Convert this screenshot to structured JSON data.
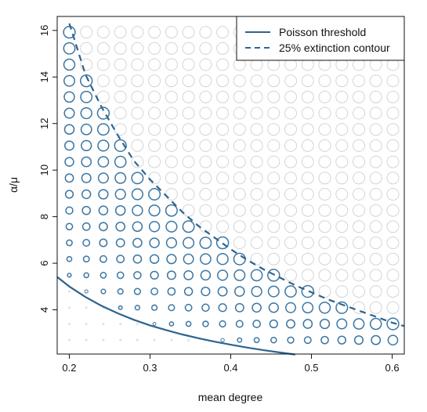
{
  "chart_data": {
    "type": "scatter",
    "xlabel": "mean degree",
    "ylabel": "α/μ",
    "xlim": [
      0.185,
      0.615
    ],
    "ylim": [
      2.1,
      16.6
    ],
    "x_ticks": [
      0.2,
      0.3,
      0.4,
      0.5,
      0.6
    ],
    "y_ticks": [
      4,
      6,
      8,
      10,
      12,
      14,
      16
    ],
    "grid": false,
    "legend": {
      "position": "top-right",
      "entries": [
        {
          "label": "Poisson threshold",
          "style": "solid"
        },
        {
          "label": "25% extinction contour",
          "style": "dashed"
        }
      ]
    },
    "grid_points": {
      "x_start": 0.2,
      "x_step": 0.0211,
      "x_count": 20,
      "y_start": 2.7,
      "y_step": 0.696,
      "y_count": 20
    },
    "series": [
      {
        "name": "Poisson threshold",
        "style": "solid",
        "x": [
          0.185,
          0.2,
          0.22,
          0.24,
          0.26,
          0.28,
          0.3,
          0.32,
          0.34,
          0.36,
          0.38,
          0.4,
          0.42,
          0.44,
          0.46,
          0.48
        ],
        "y": [
          5.41,
          5.0,
          4.55,
          4.17,
          3.85,
          3.57,
          3.33,
          3.13,
          2.94,
          2.78,
          2.63,
          2.5,
          2.38,
          2.27,
          2.17,
          2.08
        ]
      },
      {
        "name": "25% extinction contour",
        "style": "dashed",
        "x": [
          0.2,
          0.22,
          0.24,
          0.26,
          0.28,
          0.3,
          0.32,
          0.34,
          0.36,
          0.38,
          0.4,
          0.42,
          0.44,
          0.46,
          0.48,
          0.5,
          0.52,
          0.54,
          0.56,
          0.58,
          0.6,
          0.615
        ],
        "y": [
          16.3,
          14.1,
          12.7,
          11.5,
          10.4,
          9.6,
          8.9,
          8.2,
          7.6,
          7.1,
          6.6,
          6.15,
          5.75,
          5.4,
          5.05,
          4.75,
          4.45,
          4.2,
          3.95,
          3.7,
          3.45,
          3.3
        ]
      }
    ]
  },
  "colors": {
    "blue": "#3b76a3",
    "line": "#2d6490",
    "grey": "#d4d4d4",
    "axis": "#111111"
  }
}
